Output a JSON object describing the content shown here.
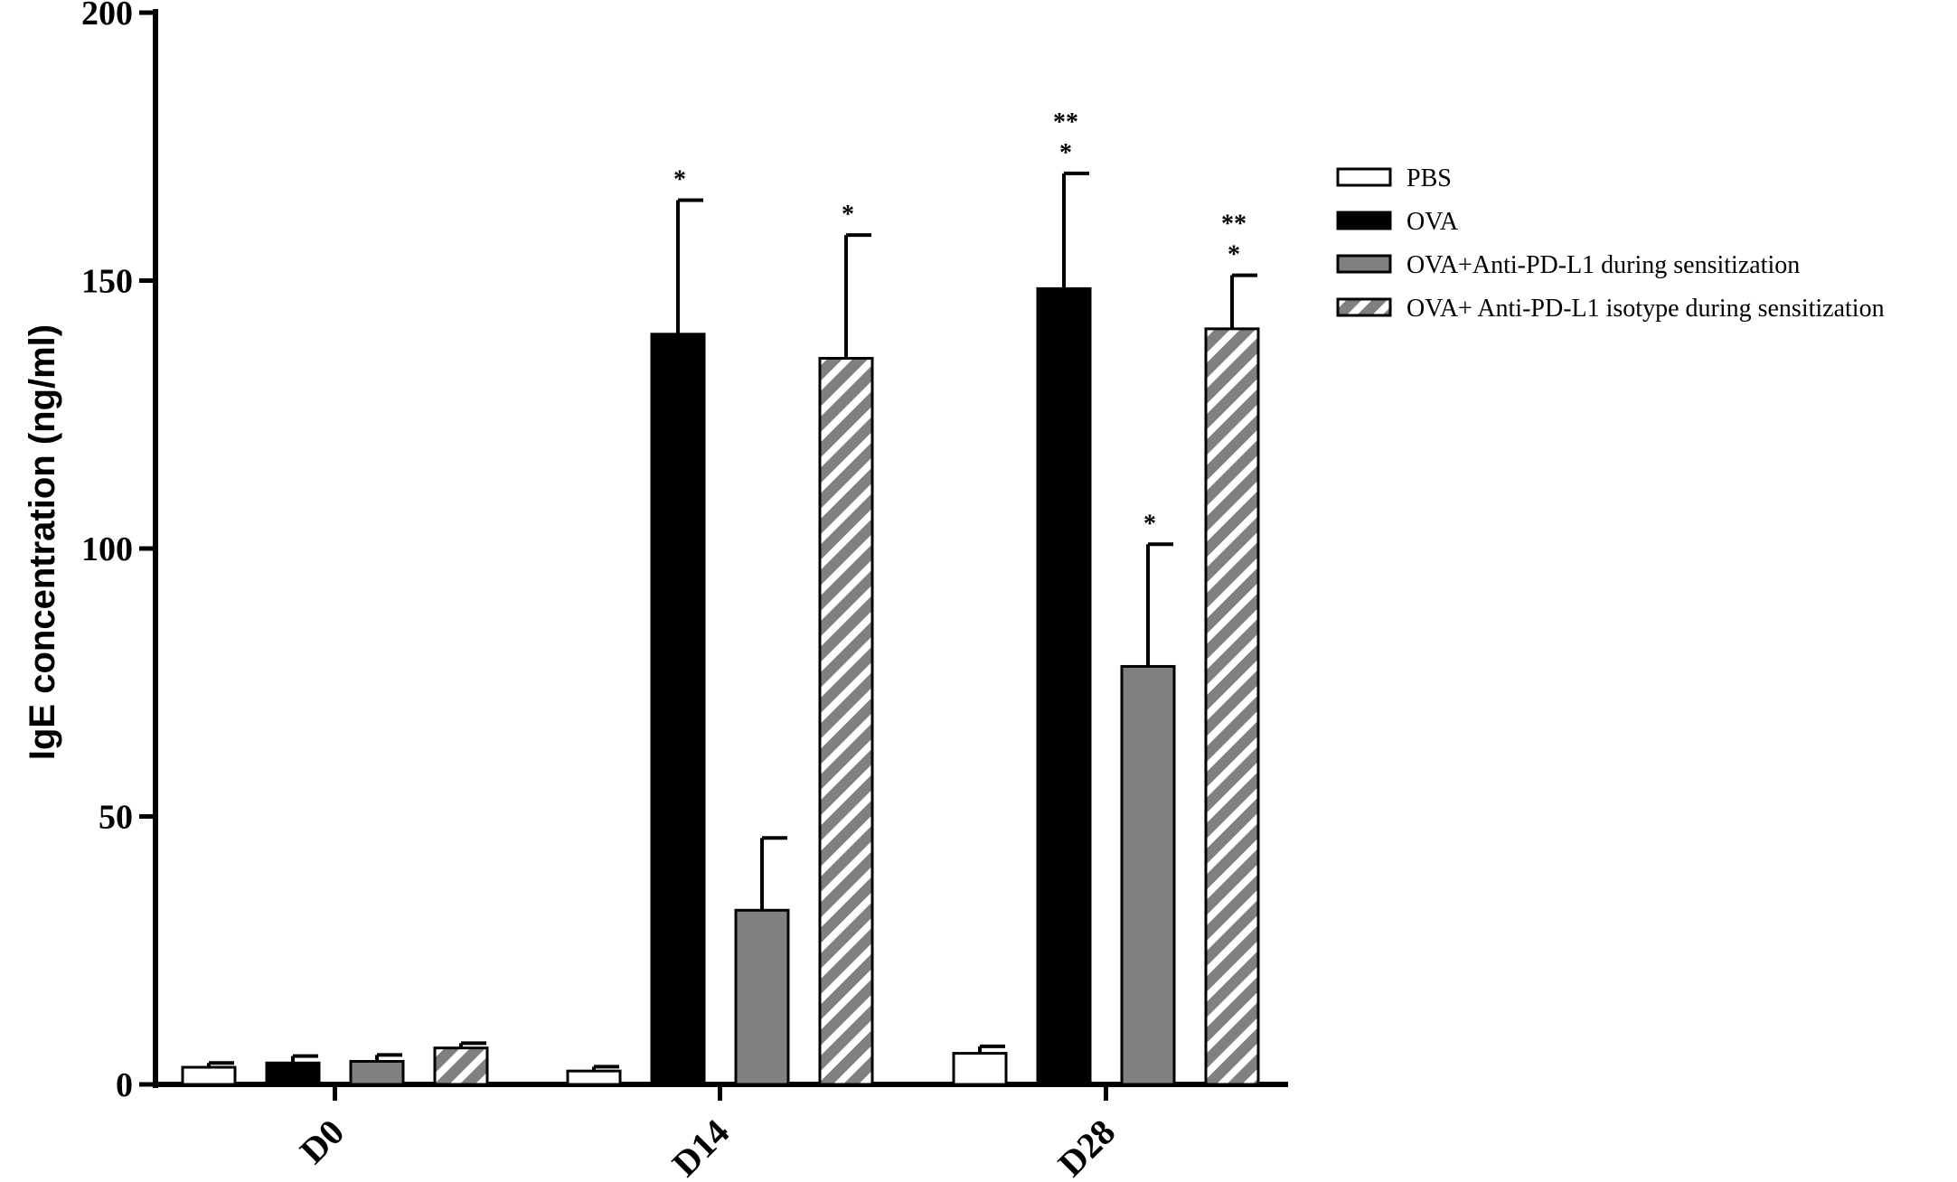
{
  "chart_data": {
    "type": "bar",
    "title": "",
    "xlabel": "",
    "ylabel": "IgE concentration (ng/ml)",
    "ylim": [
      0,
      200
    ],
    "yticks": [
      0,
      50,
      100,
      150,
      200
    ],
    "categories": [
      "D0",
      "D14",
      "D28"
    ],
    "legend_position": "right",
    "grid": false,
    "series": [
      {
        "name": "PBS",
        "fill": "#ffffff",
        "pattern": "none",
        "values": [
          3.2,
          2.5,
          5.8
        ],
        "errors": [
          0.8,
          0.8,
          1.3
        ],
        "annotations": [
          "",
          "",
          ""
        ]
      },
      {
        "name": "OVA",
        "fill": "#000000",
        "pattern": "none",
        "values": [
          4.0,
          140.0,
          148.5
        ],
        "errors": [
          1.3,
          25.0,
          21.5
        ],
        "annotations": [
          "",
          "*",
          "**\n*"
        ]
      },
      {
        "name": "OVA+Anti-PD-L1 during sensitization",
        "fill": "#808080",
        "pattern": "none",
        "values": [
          4.3,
          32.5,
          78.0
        ],
        "errors": [
          1.2,
          13.5,
          22.8
        ],
        "annotations": [
          "",
          "",
          "*"
        ]
      },
      {
        "name": "OVA+ Anti-PD-L1 isotype during sensitization",
        "fill": "#808080",
        "pattern": "diagonal-white-stripes",
        "values": [
          6.8,
          135.5,
          141.0
        ],
        "errors": [
          0.9,
          23.0,
          10.0
        ],
        "annotations": [
          "",
          "*",
          "**\n*"
        ]
      }
    ]
  }
}
